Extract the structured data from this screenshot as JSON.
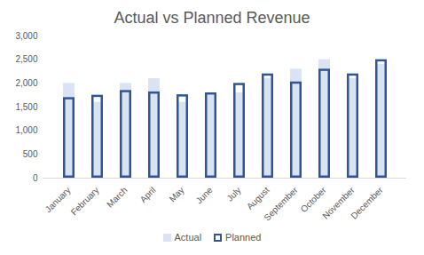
{
  "chart_data": {
    "type": "bar",
    "title": "Actual vs Planned Revenue",
    "categories": [
      "January",
      "February",
      "March",
      "April",
      "May",
      "June",
      "July",
      "August",
      "September",
      "October",
      "November",
      "December"
    ],
    "series": [
      {
        "name": "Actual",
        "color": "#dae3f3",
        "values": [
          2000,
          1600,
          2000,
          2100,
          1600,
          1750,
          1800,
          2100,
          2300,
          2500,
          2100,
          2400
        ]
      },
      {
        "name": "Planned",
        "color": "#2f5597",
        "values": [
          1700,
          1750,
          1850,
          1820,
          1760,
          1800,
          2000,
          2200,
          2030,
          2300,
          2200,
          2500
        ]
      }
    ],
    "ylim": [
      0,
      3000
    ],
    "yticks": [
      0,
      500,
      1000,
      1500,
      2000,
      2500,
      3000
    ],
    "grid": false,
    "legend": "bottom"
  }
}
